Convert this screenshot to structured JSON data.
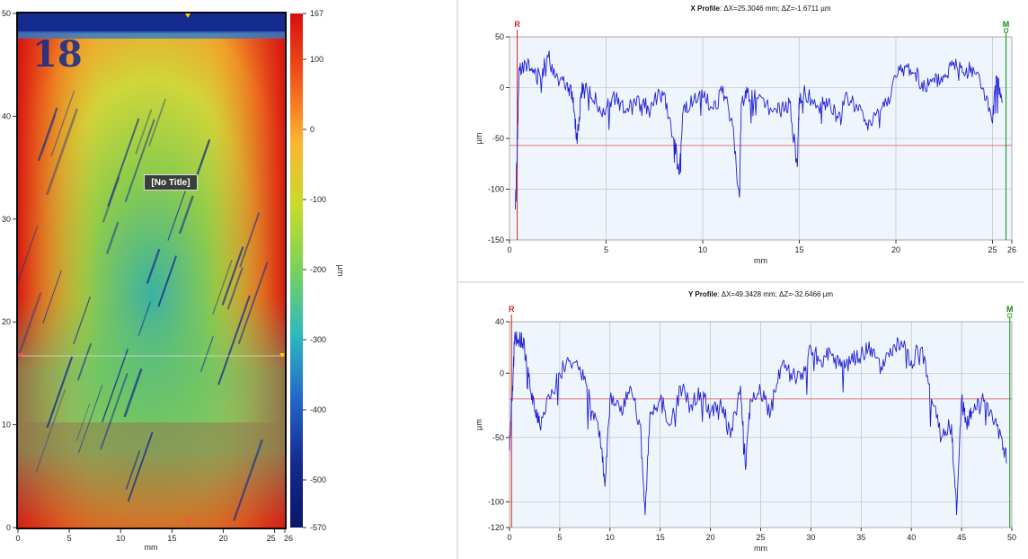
{
  "colors": {
    "profile_line": "#1f1fd6",
    "ref_line": "#e05050",
    "marker_R": "#e02020",
    "marker_M": "#138a13",
    "plot_bg": "#eef5fc",
    "grid": "#b8b8b8"
  },
  "surface_map": {
    "overlay_label": "[No Title]",
    "x_label": "mm",
    "x_ticks": [
      "0",
      "5",
      "10",
      "15",
      "20",
      "25",
      "26"
    ],
    "y_ticks": [
      "0",
      "10",
      "20",
      "30",
      "40",
      "50"
    ],
    "colorbar_unit": "µm",
    "colorbar_ticks": [
      "167",
      "100",
      "0",
      "-100",
      "-200",
      "-300",
      "-400",
      "-500",
      "-570"
    ],
    "color_scale": [
      "#d70f0f",
      "#f2561a",
      "#fcb531",
      "#c6dc2a",
      "#7ad15b",
      "#2db9c0",
      "#2466c8",
      "#142a8f",
      "#0a1766"
    ],
    "section_markers": {
      "x_mm": 16.5,
      "y_mm": 16.5
    }
  },
  "chart_data": [
    {
      "type": "line",
      "title_bold": "X Profile",
      "title_rest": ": ΔX=25.3046 mm; ΔZ=-1.6711 µm",
      "xlabel": "mm",
      "ylabel": "µm",
      "xlim": [
        0,
        26
      ],
      "ylim": [
        -150,
        50
      ],
      "x_ticks": [
        0,
        5,
        10,
        15,
        20,
        25,
        26
      ],
      "y_ticks": [
        50,
        0,
        -50,
        -100,
        -150
      ],
      "marker_R": "R",
      "marker_M": "M",
      "marker_R_x": 0.4,
      "marker_M_x": 25.7,
      "ref_level": -57,
      "series": [
        {
          "x": [
            0.3,
            0.4,
            0.5,
            0.8,
            1.2,
            1.6,
            2.0,
            2.5,
            3.0,
            3.3,
            3.5,
            3.7,
            4.0,
            4.5,
            5.0,
            5.5,
            6.0,
            6.5,
            7.0,
            7.5,
            8.0,
            8.5,
            8.8,
            9.0,
            9.5,
            10.0,
            10.5,
            11.0,
            11.5,
            11.9,
            12.0,
            12.3,
            12.8,
            13.5,
            14.0,
            14.5,
            14.9,
            15.0,
            15.3,
            16.0,
            16.5,
            17.0,
            17.5,
            18.0,
            18.5,
            19.0,
            19.5,
            20.0,
            20.5,
            21.0,
            21.5,
            22.0,
            22.5,
            23.0,
            23.5,
            24.0,
            24.5,
            25.0,
            25.2,
            25.5
          ],
          "y": [
            -120,
            -60,
            20,
            25,
            15,
            10,
            30,
            10,
            5,
            -10,
            -55,
            -5,
            0,
            -15,
            -20,
            -10,
            -25,
            -15,
            -20,
            -10,
            -5,
            -50,
            -85,
            -20,
            -15,
            -10,
            -20,
            -5,
            -30,
            -108,
            -15,
            -5,
            -10,
            -20,
            -25,
            -15,
            -78,
            -10,
            -5,
            -20,
            -15,
            -30,
            -10,
            -20,
            -35,
            -25,
            -15,
            10,
            20,
            15,
            0,
            5,
            10,
            25,
            15,
            20,
            0,
            -35,
            10,
            -15
          ]
        }
      ]
    },
    {
      "type": "line",
      "title_bold": "Y Profile",
      "title_rest": ": ΔX=49.3428 mm; ΔZ=-32.6466 µm",
      "xlabel": "mm",
      "ylabel": "µm",
      "xlim": [
        0,
        50
      ],
      "ylim": [
        -120,
        40
      ],
      "x_ticks": [
        0,
        5,
        10,
        15,
        20,
        25,
        30,
        35,
        40,
        45,
        50
      ],
      "y_ticks": [
        40,
        0,
        -50,
        -100,
        -120
      ],
      "marker_R": "R",
      "marker_M": "M",
      "marker_R_x": 0.2,
      "marker_M_x": 49.8,
      "ref_level": -20,
      "series": [
        {
          "x": [
            0,
            0.3,
            0.5,
            1.0,
            1.5,
            2.0,
            2.5,
            3.0,
            4.0,
            5.0,
            6.0,
            7.0,
            8.0,
            9.0,
            9.5,
            10.0,
            11.0,
            12.0,
            13.0,
            13.5,
            14.0,
            15.0,
            16.0,
            17.0,
            18.0,
            19.0,
            20.0,
            21.0,
            22.0,
            23.0,
            23.5,
            24.0,
            25.0,
            26.0,
            27.0,
            28.0,
            29.0,
            30.0,
            31.0,
            32.0,
            33.0,
            34.0,
            35.0,
            36.0,
            37.0,
            38.0,
            39.0,
            40.0,
            41.0,
            42.0,
            43.0,
            44.0,
            44.5,
            45.0,
            45.5,
            46.0,
            47.0,
            48.0,
            49.0,
            49.5
          ],
          "y": [
            -60,
            -10,
            25,
            28,
            20,
            -5,
            -30,
            -40,
            -20,
            0,
            10,
            5,
            -20,
            -45,
            -88,
            -20,
            -30,
            -10,
            -40,
            -110,
            -30,
            -20,
            -40,
            -10,
            -25,
            -15,
            -30,
            -20,
            -50,
            -10,
            -75,
            -20,
            -15,
            -30,
            5,
            0,
            -5,
            20,
            10,
            15,
            5,
            10,
            15,
            20,
            5,
            15,
            25,
            10,
            20,
            -20,
            -50,
            -40,
            -110,
            -20,
            -40,
            -30,
            -20,
            -30,
            -50,
            -70
          ]
        }
      ]
    }
  ]
}
